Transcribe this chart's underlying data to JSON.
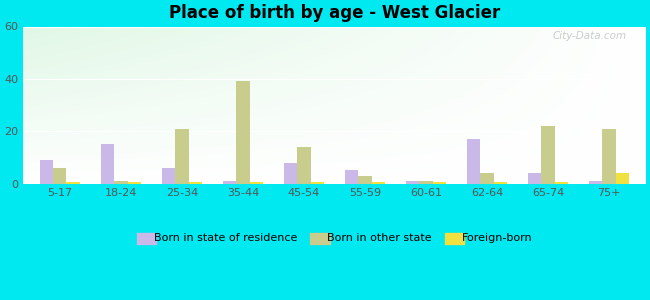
{
  "title": "Place of birth by age - West Glacier",
  "categories": [
    "5-17",
    "18-24",
    "25-34",
    "35-44",
    "45-54",
    "55-59",
    "60-61",
    "62-64",
    "65-74",
    "75+"
  ],
  "born_in_state": [
    9,
    15,
    6,
    1,
    8,
    5,
    1,
    17,
    4,
    1
  ],
  "born_other_state": [
    6,
    1,
    21,
    39,
    14,
    3,
    1,
    4,
    22,
    21
  ],
  "foreign_born": [
    0.5,
    0.5,
    0.5,
    0.5,
    0.5,
    0.5,
    0.5,
    0.5,
    0.5,
    4
  ],
  "color_state": "#c9b8e8",
  "color_other": "#c8cc8c",
  "color_foreign": "#f0e040",
  "ylim": [
    0,
    60
  ],
  "yticks": [
    0,
    20,
    40,
    60
  ],
  "outer_background": "#00e8f0",
  "bar_width": 0.22,
  "legend_labels": [
    "Born in state of residence",
    "Born in other state",
    "Foreign-born"
  ]
}
